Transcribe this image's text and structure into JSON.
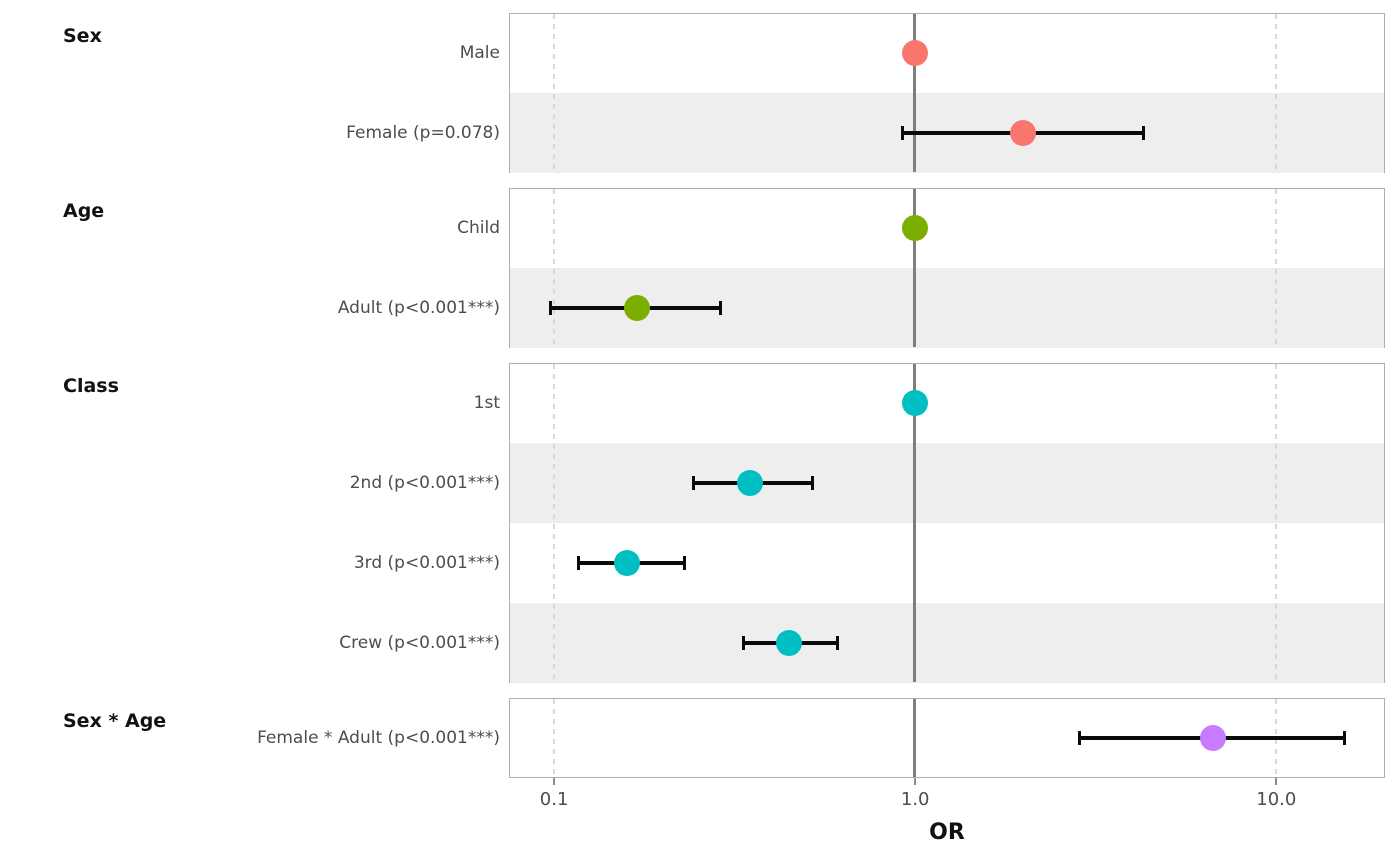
{
  "chart_data": {
    "type": "forest-dotplot",
    "title": "",
    "xlabel": "OR",
    "x_scale": "log10",
    "x_tick_labels": [
      "0.1",
      "1.0",
      "10.0"
    ],
    "x_tick_values": [
      0.1,
      1.0,
      10.0
    ],
    "dashed_grid_values": [
      0.1,
      10.0
    ],
    "reference_line_value": 1.0,
    "x_range": [
      0.075,
      20.0
    ],
    "grid": "dashed-at-decades",
    "legend": "none",
    "groups": [
      {
        "title": "Sex",
        "color": "#F8766D",
        "rows": [
          {
            "label": "Male",
            "or": 1.0,
            "reference": true
          },
          {
            "label": "Female (p=0.078)",
            "or": 2.0,
            "ci_low": 0.91,
            "ci_high": 4.3
          }
        ]
      },
      {
        "title": "Age",
        "color": "#7CAE00",
        "rows": [
          {
            "label": "Child",
            "or": 1.0,
            "reference": true
          },
          {
            "label": "Adult (p<0.001***)",
            "or": 0.17,
            "ci_low": 0.096,
            "ci_high": 0.29
          }
        ]
      },
      {
        "title": "Class",
        "color": "#00BFC4",
        "rows": [
          {
            "label": "1st",
            "or": 1.0,
            "reference": true
          },
          {
            "label": "2nd (p<0.001***)",
            "or": 0.35,
            "ci_low": 0.24,
            "ci_high": 0.52
          },
          {
            "label": "3rd (p<0.001***)",
            "or": 0.16,
            "ci_low": 0.115,
            "ci_high": 0.23
          },
          {
            "label": "Crew (p<0.001***)",
            "or": 0.45,
            "ci_low": 0.33,
            "ci_high": 0.61
          }
        ]
      },
      {
        "title": "Sex * Age",
        "color": "#C77CFF",
        "rows": [
          {
            "label": "Female * Adult (p<0.001***)",
            "or": 6.7,
            "ci_low": 2.8,
            "ci_high": 15.5
          }
        ]
      }
    ],
    "colors": {
      "stripe": "#eeeeee",
      "reference_line": "#7f7f7f",
      "dashed_grid": "#d8d8d8",
      "panel_border": "#aeaeae",
      "ci": "#0a0a0a",
      "row_label_text": "#4d4d4d",
      "header_text": "#111111"
    }
  }
}
